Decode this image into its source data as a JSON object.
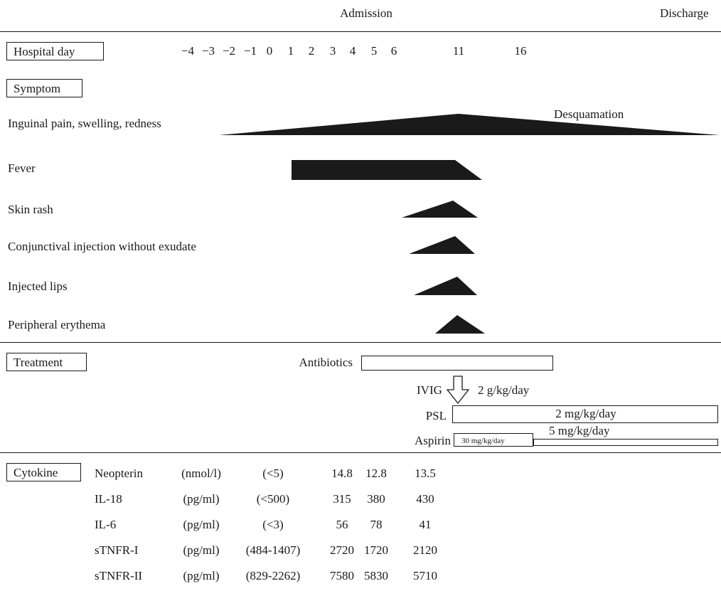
{
  "timeline": {
    "admission_label": "Admission",
    "discharge_label": "Discharge",
    "hospital_day_label": "Hospital day",
    "days": [
      "−4",
      "−3",
      "−2",
      "−1",
      "0",
      "1",
      "2",
      "3",
      "4",
      "5",
      "6",
      "11",
      "16"
    ]
  },
  "symptom": {
    "section_label": "Symptom",
    "items": [
      {
        "label": "Inguinal pain, swelling, redness",
        "annotation": "Desquamation"
      },
      {
        "label": "Fever"
      },
      {
        "label": "Skin rash"
      },
      {
        "label": "Conjunctival injection without exudate"
      },
      {
        "label": "Injected lips"
      },
      {
        "label": "Peripheral erythema"
      }
    ]
  },
  "treatment": {
    "section_label": "Treatment",
    "antibiotics_label": "Antibiotics",
    "ivig_label": "IVIG",
    "ivig_dose": "2 g/kg/day",
    "psl_label": "PSL",
    "psl_dose": "2 mg/kg/day",
    "aspirin_label": "Aspirin",
    "aspirin_dose_high": "30 mg/kg/day",
    "aspirin_dose_low": "5 mg/kg/day"
  },
  "cytokine": {
    "section_label": "Cytokine",
    "rows": [
      {
        "name": "Neopterin",
        "unit": "(nmol/l)",
        "ref": "(<5)",
        "v1": "14.8",
        "v2": "12.8",
        "v3": "13.5"
      },
      {
        "name": "IL-18",
        "unit": "(pg/ml)",
        "ref": "(<500)",
        "v1": "315",
        "v2": "380",
        "v3": "430"
      },
      {
        "name": "IL-6",
        "unit": "(pg/ml)",
        "ref": "(<3)",
        "v1": "56",
        "v2": "78",
        "v3": "41"
      },
      {
        "name": "sTNFR-I",
        "unit": "(pg/ml)",
        "ref": "(484-1407)",
        "v1": "2720",
        "v2": "1720",
        "v3": "2120"
      },
      {
        "name": "sTNFR-II",
        "unit": "(pg/ml)",
        "ref": "(829-2262)",
        "v1": "7580",
        "v2": "5830",
        "v3": "5710"
      }
    ]
  },
  "colors": {
    "ink": "#1a1a1a",
    "background": "#ffffff"
  }
}
